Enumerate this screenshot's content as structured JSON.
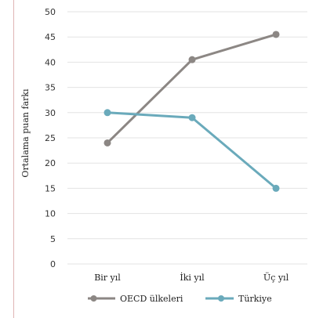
{
  "chart_data": {
    "type": "line",
    "categories": [
      "Bir yıl",
      "İki yıl",
      "Üç yıl"
    ],
    "series": [
      {
        "name": "OECD ülkeleri",
        "values": [
          24,
          40.5,
          45.5
        ],
        "color": "#8c8784"
      },
      {
        "name": "Türkiye",
        "values": [
          30,
          29,
          15
        ],
        "color": "#6aaabb"
      }
    ],
    "ylabel": "Ortalama puan farkı",
    "xlabel": "",
    "ylim": [
      0,
      50
    ],
    "yticks": [
      0,
      5,
      10,
      15,
      20,
      25,
      30,
      35,
      40,
      45,
      50
    ],
    "grid": true,
    "legend": "bottom"
  }
}
